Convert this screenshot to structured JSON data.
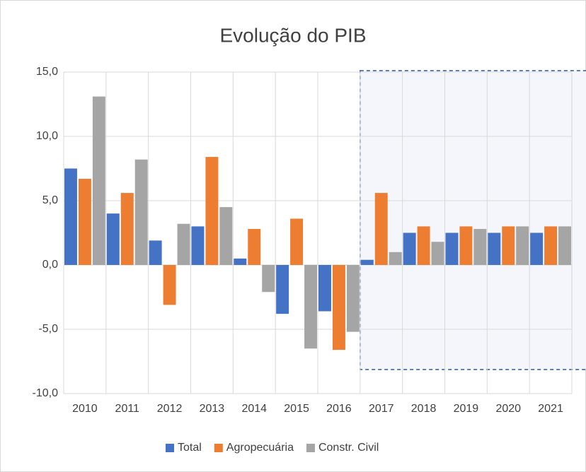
{
  "chart_data": {
    "type": "bar",
    "title": "Evolução do PIB",
    "categories": [
      "2010",
      "2011",
      "2012",
      "2013",
      "2014",
      "2015",
      "2016",
      "2017",
      "2018",
      "2019",
      "2020",
      "2021"
    ],
    "series": [
      {
        "name": "Total",
        "color": "#4472c4",
        "values": [
          7.5,
          4.0,
          1.9,
          3.0,
          0.5,
          -3.8,
          -3.6,
          0.4,
          2.5,
          2.5,
          2.5,
          2.5
        ]
      },
      {
        "name": "Agropecuária",
        "color": "#ed7d31",
        "values": [
          6.7,
          5.6,
          -3.1,
          8.4,
          2.8,
          3.6,
          -6.6,
          5.6,
          3.0,
          3.0,
          3.0,
          3.0
        ]
      },
      {
        "name": "Constr. Civil",
        "color": "#a5a5a5",
        "values": [
          13.1,
          8.2,
          3.2,
          4.5,
          -2.1,
          -6.5,
          -5.2,
          1.0,
          1.8,
          2.8,
          3.0,
          3.0
        ]
      }
    ],
    "ylim": [
      -10,
      15
    ],
    "yticks": [
      {
        "value": -10,
        "label": "-10,0"
      },
      {
        "value": -5,
        "label": "-5,0"
      },
      {
        "value": 0,
        "label": "0,0"
      },
      {
        "value": 5,
        "label": "5,0"
      },
      {
        "value": 10,
        "label": "10,0"
      },
      {
        "value": 15,
        "label": "15,0"
      }
    ],
    "grid": true,
    "legend": "bottom"
  }
}
